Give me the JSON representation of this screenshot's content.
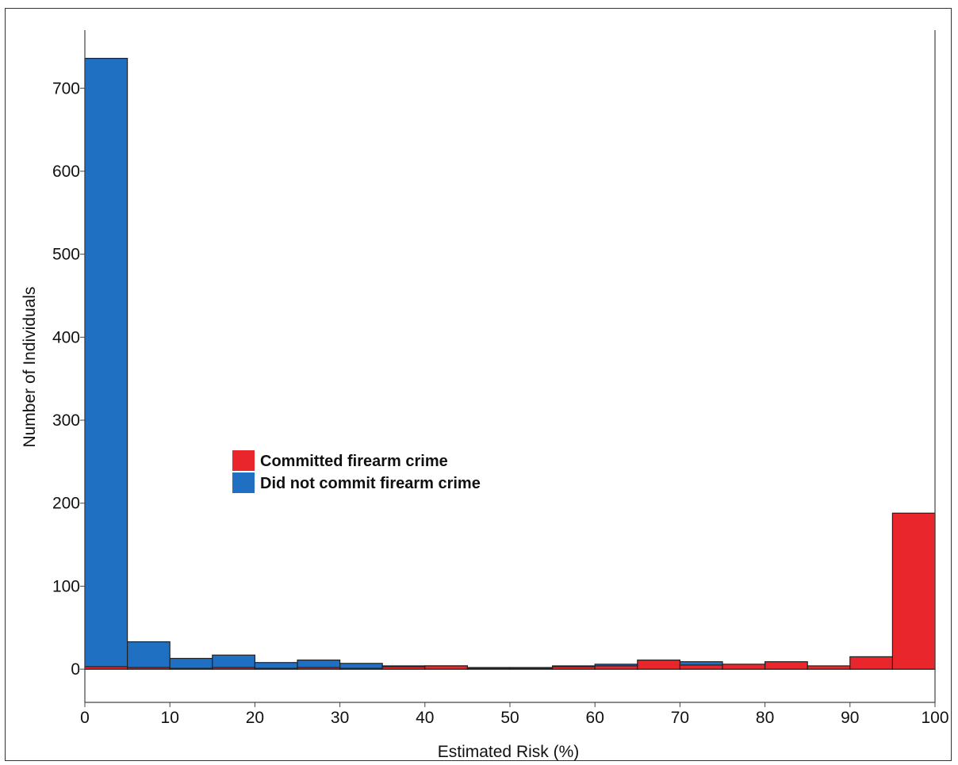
{
  "chart_data": {
    "type": "bar",
    "title": "",
    "xlabel": "Estimated Risk (%)",
    "ylabel": "Number of Individuals",
    "xlim": [
      0,
      100
    ],
    "ylim": [
      -40,
      770
    ],
    "bin_width": 5,
    "xticks": [
      0,
      10,
      20,
      30,
      40,
      50,
      60,
      70,
      80,
      90,
      100
    ],
    "yticks": [
      0,
      100,
      200,
      300,
      400,
      500,
      600,
      700
    ],
    "legend": {
      "position": "center-left"
    },
    "grid": false,
    "series": [
      {
        "name": "Committed firearm crime",
        "color": "#e8262b",
        "bin_start": [
          0,
          5,
          10,
          15,
          20,
          25,
          30,
          35,
          40,
          45,
          50,
          55,
          60,
          65,
          70,
          75,
          80,
          85,
          90,
          95
        ],
        "values": [
          3,
          2,
          1,
          2,
          1,
          2,
          1,
          3,
          4,
          1,
          1,
          3,
          4,
          11,
          5,
          6,
          9,
          4,
          15,
          188
        ]
      },
      {
        "name": "Did not commit firearm crime",
        "color": "#1f6fc2",
        "bin_start": [
          0,
          5,
          10,
          15,
          20,
          25,
          30,
          35,
          40,
          45,
          50,
          55,
          60,
          65,
          70,
          75,
          80,
          85,
          90,
          95
        ],
        "values": [
          736,
          33,
          13,
          17,
          8,
          11,
          7,
          4,
          4,
          2,
          2,
          4,
          6,
          6,
          9,
          4,
          4,
          2,
          3,
          1
        ]
      }
    ]
  }
}
